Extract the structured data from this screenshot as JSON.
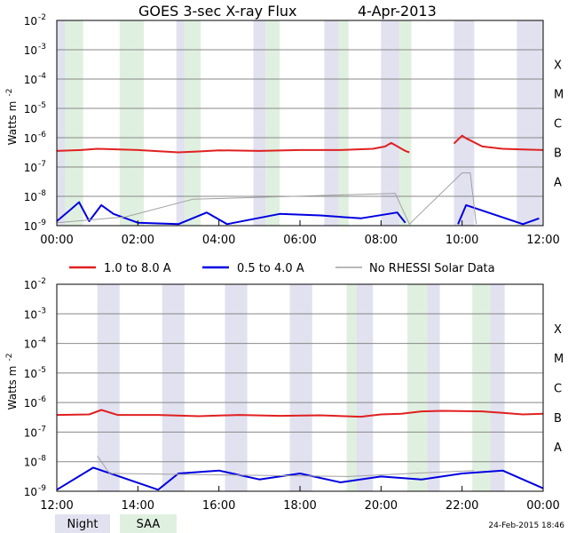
{
  "title": "GOES 3-sec X-ray Flux",
  "date": "4-Apr-2013",
  "footer_timestamp": "24-Feb-2015 18:46",
  "ylabel_base": "Watts m",
  "ylabel_exp": "-2",
  "ylim_log10": [
    -9,
    -2
  ],
  "y_ticks": [
    {
      "base": "10",
      "exp": "-2",
      "log10": -2
    },
    {
      "base": "10",
      "exp": "-3",
      "log10": -3
    },
    {
      "base": "10",
      "exp": "-4",
      "log10": -4
    },
    {
      "base": "10",
      "exp": "-5",
      "log10": -5
    },
    {
      "base": "10",
      "exp": "-6",
      "log10": -6
    },
    {
      "base": "10",
      "exp": "-7",
      "log10": -7
    },
    {
      "base": "10",
      "exp": "-8",
      "log10": -8
    },
    {
      "base": "10",
      "exp": "-9",
      "log10": -9
    }
  ],
  "flare_classes": [
    {
      "label": "X",
      "log10": -3.5
    },
    {
      "label": "M",
      "log10": -4.5
    },
    {
      "label": "C",
      "log10": -5.5
    },
    {
      "label": "B",
      "log10": -6.5
    },
    {
      "label": "A",
      "log10": -7.5
    }
  ],
  "legend": {
    "long": {
      "label": "1.0 to 8.0 A",
      "color": "#e02020"
    },
    "short": {
      "label": "0.5 to 4.0 A",
      "color": "#0000e0"
    },
    "gray": {
      "label": "No RHESSI Solar Data",
      "color": "#a0a0a0"
    },
    "night": {
      "label": "Night",
      "color": "#e1e1f0"
    },
    "saa": {
      "label": "SAA",
      "color": "#e0f0e0"
    }
  },
  "chart_data": [
    {
      "type": "line",
      "x_unit": "hours",
      "xlim": [
        0,
        12
      ],
      "x_tick_labels": [
        "00:00",
        "02:00",
        "04:00",
        "06:00",
        "08:00",
        "10:00",
        "12:00"
      ],
      "night": [
        [
          0.0,
          0.45
        ],
        [
          2.95,
          3.35
        ],
        [
          4.85,
          5.15
        ],
        [
          6.6,
          7.0
        ],
        [
          8.0,
          8.5
        ],
        [
          9.8,
          10.3
        ],
        [
          11.35,
          12.0
        ]
      ],
      "saa": [
        [
          0.2,
          0.65
        ],
        [
          1.55,
          2.15
        ],
        [
          3.15,
          3.55
        ],
        [
          5.15,
          5.5
        ],
        [
          6.95,
          7.2
        ],
        [
          8.45,
          8.75
        ]
      ],
      "series": [
        {
          "name": "1.0 to 8.0 A",
          "log10": [
            [
              0.0,
              -6.45
            ],
            [
              0.6,
              -6.42
            ],
            [
              1.0,
              -6.38
            ],
            [
              2.0,
              -6.42
            ],
            [
              3.0,
              -6.5
            ],
            [
              3.5,
              -6.47
            ],
            [
              4.0,
              -6.43
            ],
            [
              5.0,
              -6.45
            ],
            [
              6.0,
              -6.42
            ],
            [
              7.0,
              -6.42
            ],
            [
              7.8,
              -6.38
            ],
            [
              8.1,
              -6.3
            ],
            [
              8.25,
              -6.18
            ],
            [
              8.6,
              -6.45
            ],
            [
              8.7,
              -6.5
            ]
          ]
        },
        {
          "name": "1.0 to 8.0 A",
          "log10": [
            [
              9.8,
              -6.2
            ],
            [
              10.0,
              -5.93
            ],
            [
              10.1,
              -6.02
            ],
            [
              10.5,
              -6.3
            ],
            [
              11.0,
              -6.38
            ],
            [
              11.5,
              -6.4
            ],
            [
              12.0,
              -6.42
            ]
          ]
        },
        {
          "name": "0.5 to 4.0 A",
          "log10": [
            [
              0.0,
              -8.85
            ],
            [
              0.3,
              -8.5
            ],
            [
              0.55,
              -8.2
            ],
            [
              0.8,
              -8.85
            ],
            [
              1.1,
              -8.3
            ],
            [
              1.4,
              -8.6
            ],
            [
              2.0,
              -8.9
            ],
            [
              3.0,
              -8.95
            ],
            [
              3.7,
              -8.55
            ],
            [
              4.2,
              -8.95
            ],
            [
              5.5,
              -8.6
            ],
            [
              6.5,
              -8.65
            ],
            [
              7.5,
              -8.75
            ],
            [
              8.4,
              -8.55
            ],
            [
              8.6,
              -8.9
            ]
          ]
        },
        {
          "name": "0.5 to 4.0 A",
          "log10": [
            [
              9.9,
              -8.95
            ],
            [
              10.1,
              -8.3
            ],
            [
              11.5,
              -8.95
            ],
            [
              11.9,
              -8.75
            ]
          ]
        },
        {
          "name": "No RHESSI Solar Data",
          "log10": [
            [
              0.0,
              -8.9
            ],
            [
              1.7,
              -8.7
            ],
            [
              3.35,
              -8.1
            ],
            [
              8.35,
              -7.9
            ],
            [
              8.7,
              -8.95
            ],
            [
              10.0,
              -7.2
            ],
            [
              10.2,
              -7.2
            ],
            [
              10.35,
              -8.95
            ]
          ]
        }
      ]
    },
    {
      "type": "line",
      "x_unit": "hours",
      "xlim": [
        12,
        24
      ],
      "x_tick_labels": [
        "12:00",
        "14:00",
        "16:00",
        "18:00",
        "20:00",
        "22:00",
        "00:00"
      ],
      "night": [
        [
          13.0,
          13.55
        ],
        [
          14.6,
          15.15
        ],
        [
          16.15,
          16.7
        ],
        [
          17.75,
          18.3
        ],
        [
          19.35,
          19.8
        ],
        [
          20.95,
          21.45
        ],
        [
          22.6,
          23.05
        ]
      ],
      "saa": [
        [
          19.15,
          19.4
        ],
        [
          20.65,
          21.15
        ],
        [
          22.25,
          22.7
        ]
      ],
      "series": [
        {
          "name": "1.0 to 8.0 A",
          "log10": [
            [
              12.0,
              -6.42
            ],
            [
              12.8,
              -6.4
            ],
            [
              13.1,
              -6.25
            ],
            [
              13.5,
              -6.42
            ],
            [
              14.5,
              -6.42
            ],
            [
              15.5,
              -6.46
            ],
            [
              16.5,
              -6.42
            ],
            [
              17.5,
              -6.45
            ],
            [
              18.5,
              -6.43
            ],
            [
              19.5,
              -6.48
            ],
            [
              20.0,
              -6.4
            ],
            [
              20.5,
              -6.38
            ],
            [
              21.0,
              -6.3
            ],
            [
              21.5,
              -6.28
            ],
            [
              22.5,
              -6.3
            ],
            [
              23.0,
              -6.35
            ],
            [
              23.5,
              -6.4
            ],
            [
              24.0,
              -6.38
            ]
          ]
        },
        {
          "name": "0.5 to 4.0 A",
          "log10": [
            [
              12.0,
              -8.95
            ],
            [
              12.9,
              -8.2
            ],
            [
              14.5,
              -8.95
            ],
            [
              15.0,
              -8.4
            ],
            [
              16.0,
              -8.3
            ],
            [
              17.0,
              -8.6
            ],
            [
              18.0,
              -8.4
            ],
            [
              19.0,
              -8.7
            ],
            [
              20.0,
              -8.5
            ],
            [
              21.0,
              -8.6
            ],
            [
              22.0,
              -8.4
            ],
            [
              23.0,
              -8.3
            ],
            [
              24.0,
              -8.9
            ]
          ]
        },
        {
          "name": "No RHESSI Solar Data",
          "log10": [
            [
              13.0,
              -7.8
            ],
            [
              13.3,
              -8.4
            ],
            [
              19.2,
              -8.5
            ],
            [
              20.7,
              -8.4
            ],
            [
              22.3,
              -8.3
            ]
          ]
        }
      ]
    }
  ]
}
